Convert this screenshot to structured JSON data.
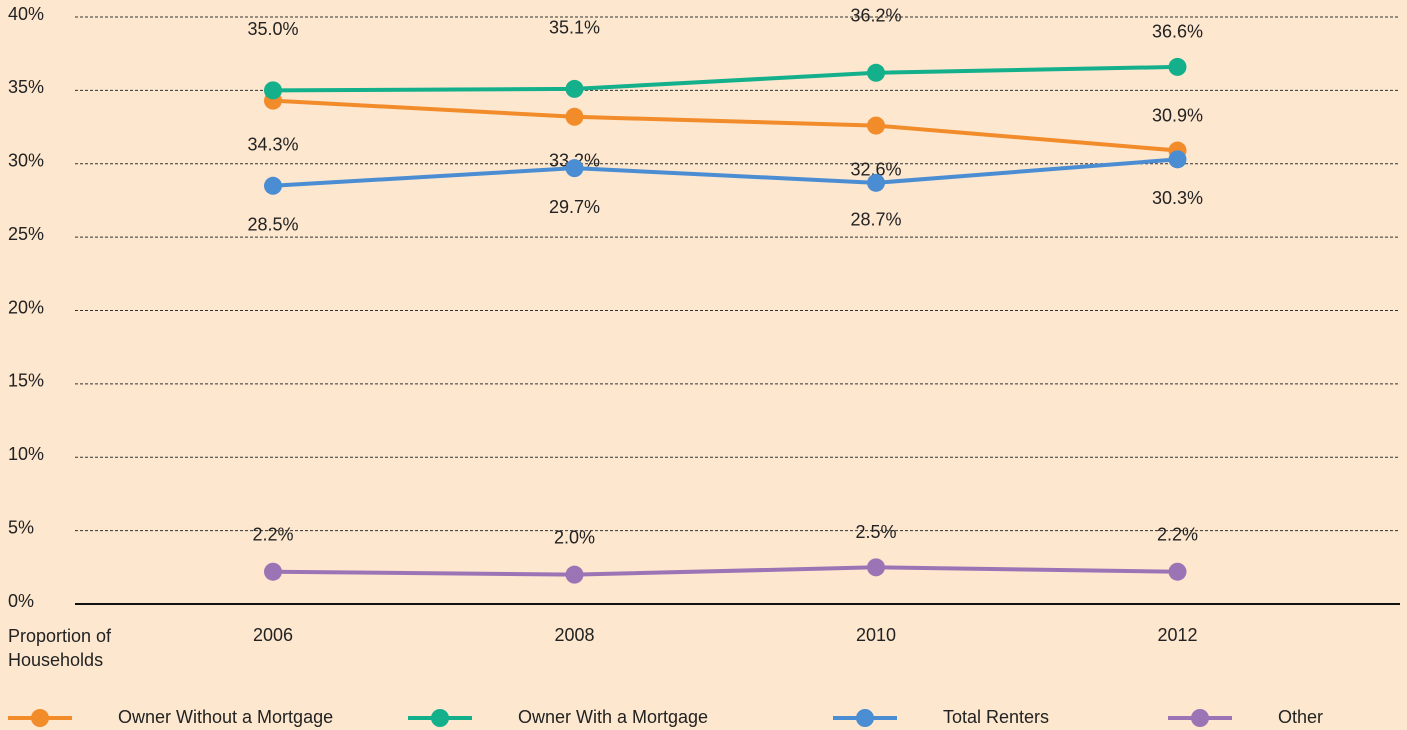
{
  "chart_data": {
    "type": "line",
    "y_axis_label": "Proportion of Households",
    "categories": [
      "2006",
      "2008",
      "2010",
      "2012"
    ],
    "ylim": [
      0,
      40
    ],
    "yticks": [
      {
        "value": 0,
        "label": "0%"
      },
      {
        "value": 5,
        "label": "5%"
      },
      {
        "value": 10,
        "label": "10%"
      },
      {
        "value": 15,
        "label": "15%"
      },
      {
        "value": 20,
        "label": "20%"
      },
      {
        "value": 25,
        "label": "25%"
      },
      {
        "value": 30,
        "label": "30%"
      },
      {
        "value": 35,
        "label": "35%"
      },
      {
        "value": 40,
        "label": "40%"
      }
    ],
    "grid": true,
    "legend": "bottom",
    "series": [
      {
        "name": "Owner Without a Mortgage",
        "color": "#f28b2a",
        "values": [
          34.3,
          33.2,
          32.6,
          30.9
        ],
        "value_labels": [
          "34.3%",
          "33.2%",
          "32.6%",
          "30.9%"
        ]
      },
      {
        "name": "Owner With a Mortgage",
        "color": "#13b08b",
        "values": [
          35.0,
          35.1,
          36.2,
          36.6
        ],
        "value_labels": [
          "35.0%",
          "35.1%",
          "36.2%",
          "36.6%"
        ]
      },
      {
        "name": "Total Renters",
        "color": "#4b8dd2",
        "values": [
          28.5,
          29.7,
          28.7,
          30.3
        ],
        "value_labels": [
          "28.5%",
          "29.7%",
          "28.7%",
          "30.3%"
        ]
      },
      {
        "name": "Other",
        "color": "#9b74b6",
        "values": [
          2.2,
          2.0,
          2.5,
          2.2
        ],
        "value_labels": [
          "2.2%",
          "2.0%",
          "2.5%",
          "2.2%"
        ]
      }
    ]
  }
}
